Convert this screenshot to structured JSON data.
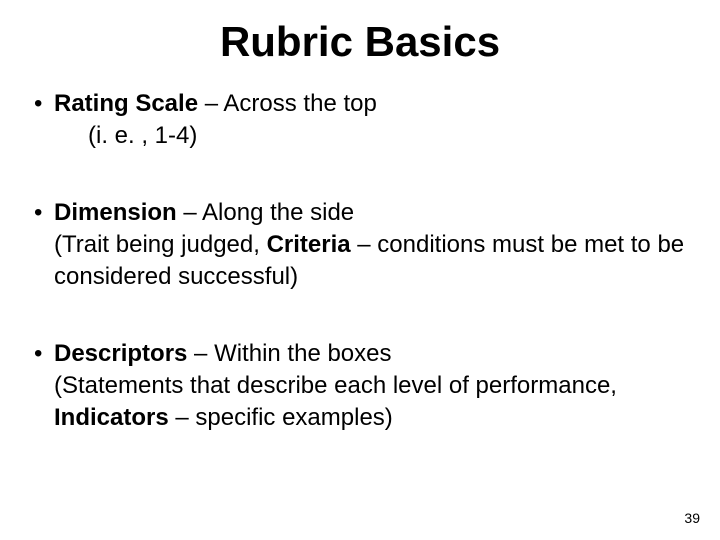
{
  "title": "Rubric Basics",
  "bullets": [
    {
      "term": "Rating Scale",
      "tail": " – Across the top",
      "sub_pre": "(i. e. , 1-4)"
    },
    {
      "term": "Dimension",
      "tail": " – Along the side",
      "line2_pre": "(Trait being judged, ",
      "line2_bold": "Criteria",
      "line2_post": " – conditions must be met to be considered successful)"
    },
    {
      "term": "Descriptors",
      "tail": " – Within the boxes",
      "line2_pre": "(Statements that describe each level of performance, ",
      "line2_bold": "Indicators",
      "line2_post": " – specific examples)"
    }
  ],
  "page_number": "39"
}
